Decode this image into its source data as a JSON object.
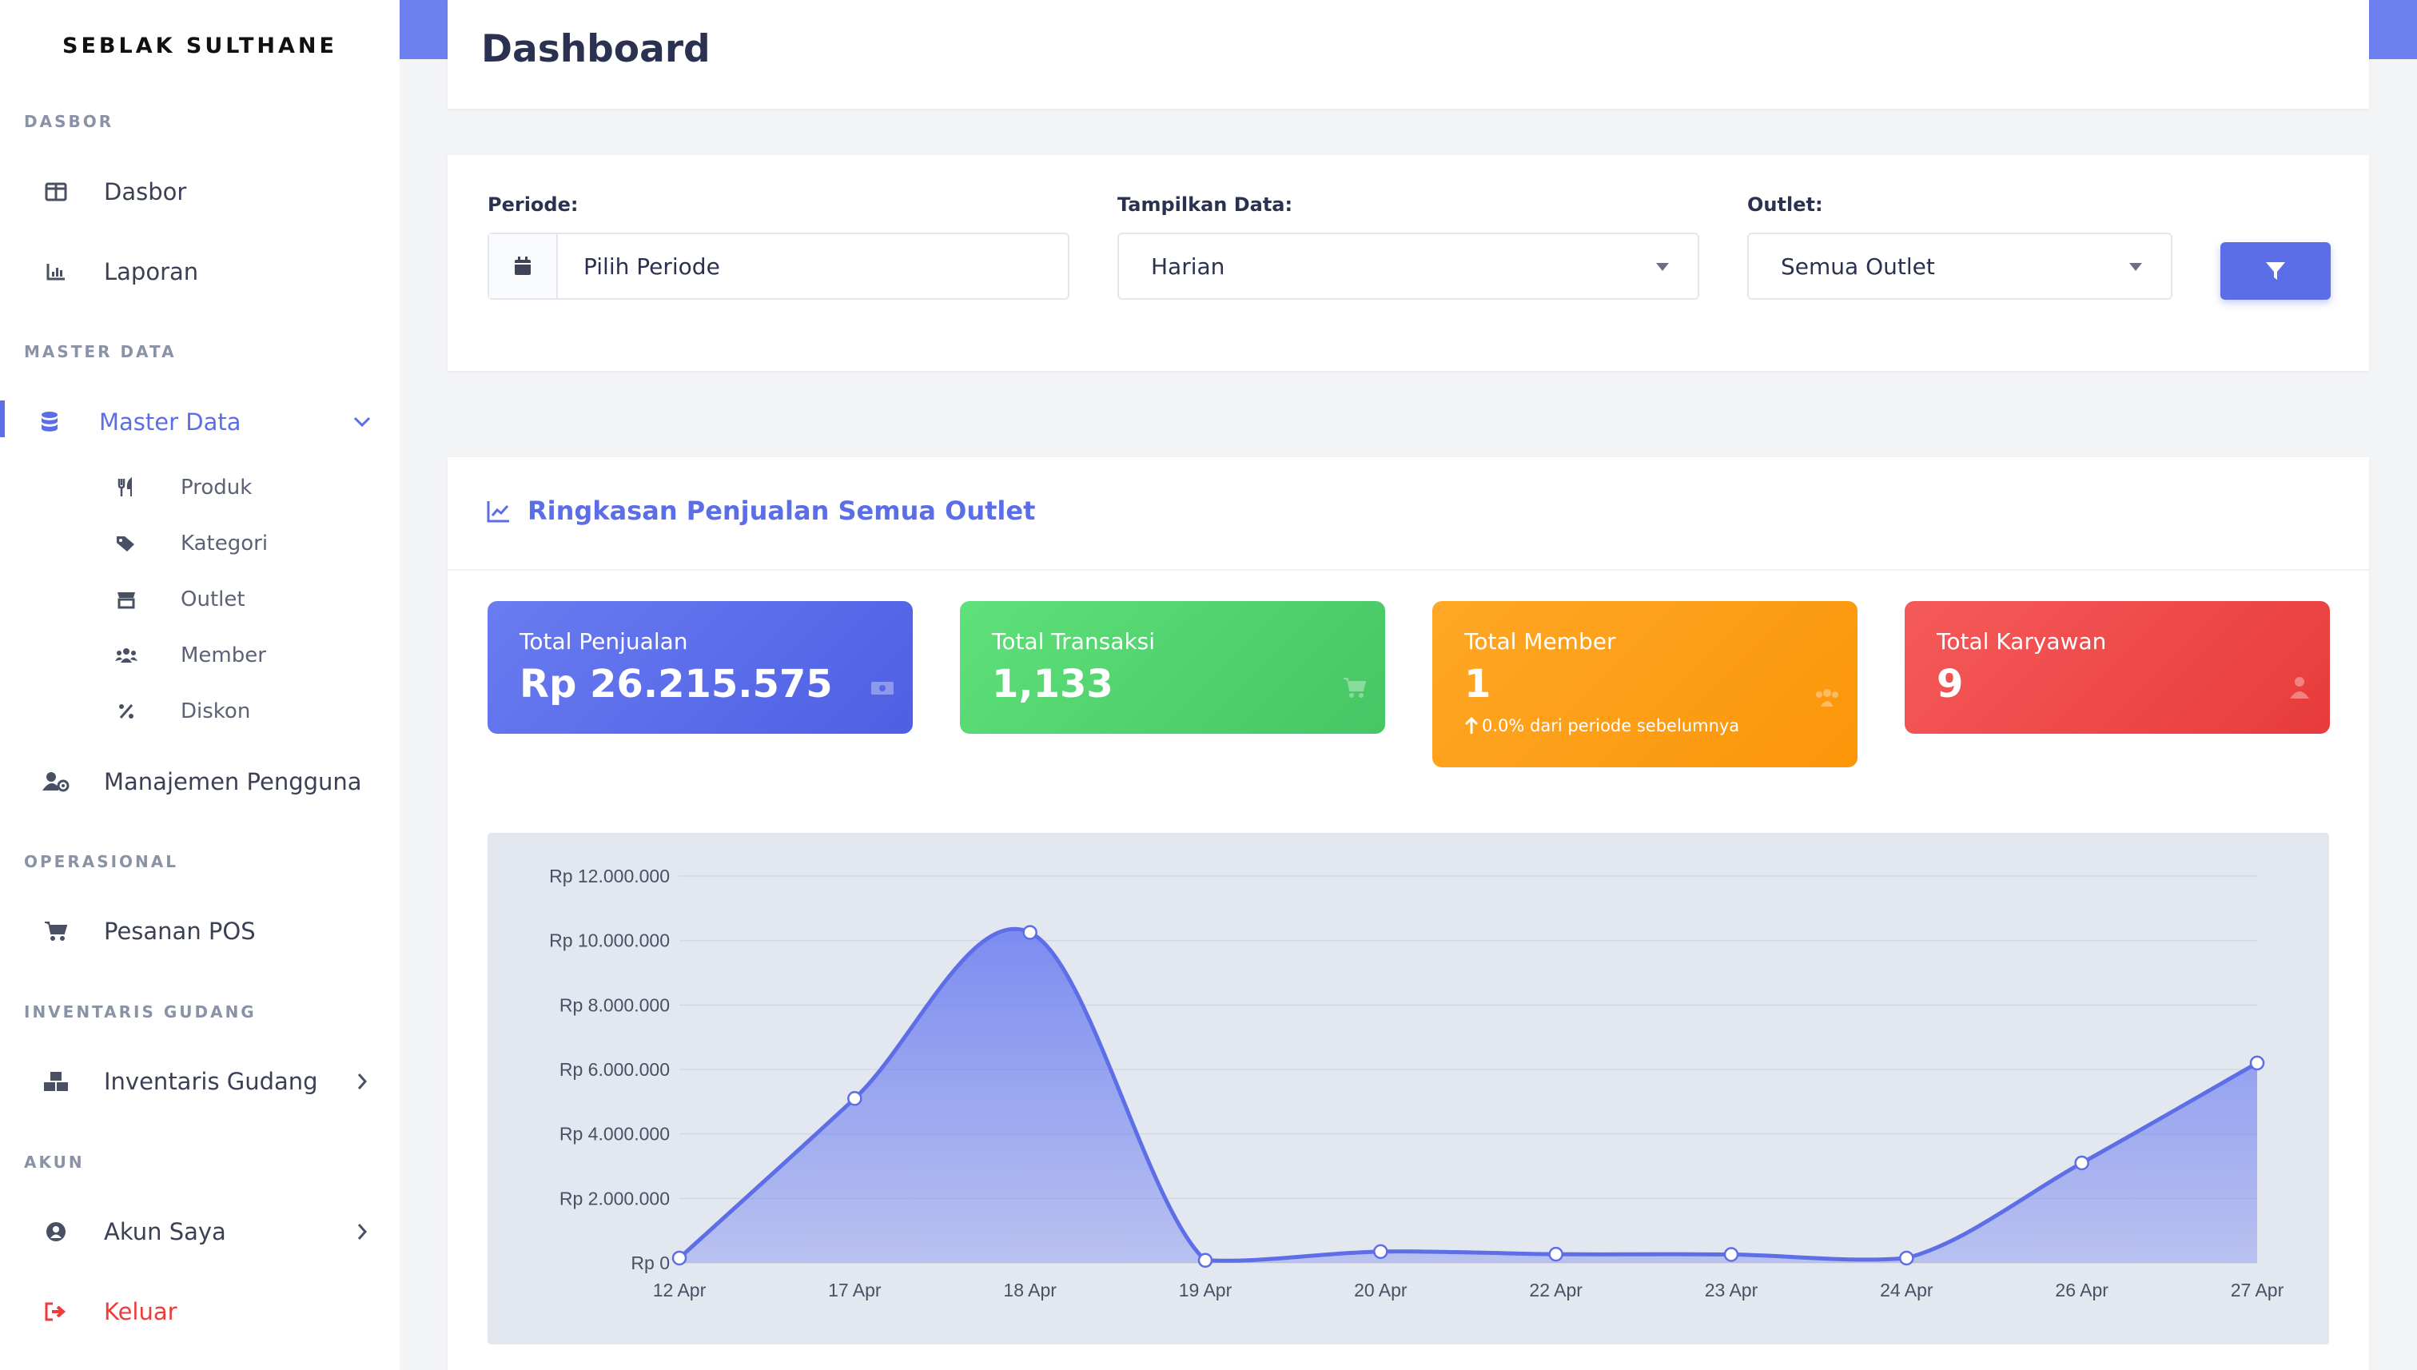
{
  "sidebar": {
    "brand": "SEBLAK SULTHANE",
    "sections": {
      "dasbor": "DASBOR",
      "master": "MASTER DATA",
      "operasional": "OPERASIONAL",
      "inventaris": "INVENTARIS GUDANG",
      "akun": "AKUN"
    },
    "items": {
      "dasbor": "Dasbor",
      "laporan": "Laporan",
      "master_data": "Master Data",
      "manajemen": "Manajemen Pengguna",
      "pesanan": "Pesanan POS",
      "inventaris": "Inventaris Gudang",
      "akun_saya": "Akun Saya",
      "keluar": "Keluar"
    },
    "sub_items": {
      "produk": "Produk",
      "kategori": "Kategori",
      "outlet": "Outlet",
      "member": "Member",
      "diskon": "Diskon"
    }
  },
  "header": {
    "title": "Dashboard"
  },
  "filters": {
    "periode_label": "Periode:",
    "periode_placeholder": "Pilih Periode",
    "tampilkan_label": "Tampilkan Data:",
    "tampilkan_value": "Harian",
    "outlet_label": "Outlet:",
    "outlet_value": "Semua Outlet"
  },
  "summary": {
    "title": "Ringkasan Penjualan Semua Outlet",
    "stats": {
      "sales": {
        "title": "Total Penjualan",
        "value": "Rp 26.215.575"
      },
      "transactions": {
        "title": "Total Transaksi",
        "value": "1,133"
      },
      "members": {
        "title": "Total Member",
        "value": "1",
        "note": "0.0% dari periode sebelumnya"
      },
      "employees": {
        "title": "Total Karyawan",
        "value": "9"
      }
    }
  },
  "colors": {
    "accent": "#5b6ee8",
    "sales": "#5b6ee8",
    "transactions": "#52d36e",
    "members": "#fb9c12",
    "employees": "#ef4444",
    "logout": "#ef3b3b"
  },
  "chart_data": {
    "type": "area",
    "categories": [
      "12 Apr",
      "17 Apr",
      "18 Apr",
      "19 Apr",
      "20 Apr",
      "22 Apr",
      "23 Apr",
      "24 Apr",
      "26 Apr",
      "27 Apr"
    ],
    "series": [
      {
        "values": [
          150000,
          5100000,
          10250000,
          80000,
          350000,
          270000,
          260000,
          150000,
          3100000,
          6200000
        ]
      }
    ],
    "ylim": [
      0,
      12000000
    ],
    "yticks": [
      "Rp 0",
      "Rp 2.000.000",
      "Rp 4.000.000",
      "Rp 6.000.000",
      "Rp 8.000.000",
      "Rp 10.000.000",
      "Rp 12.000.000"
    ],
    "grid": true,
    "color": "#6a7cf0"
  }
}
